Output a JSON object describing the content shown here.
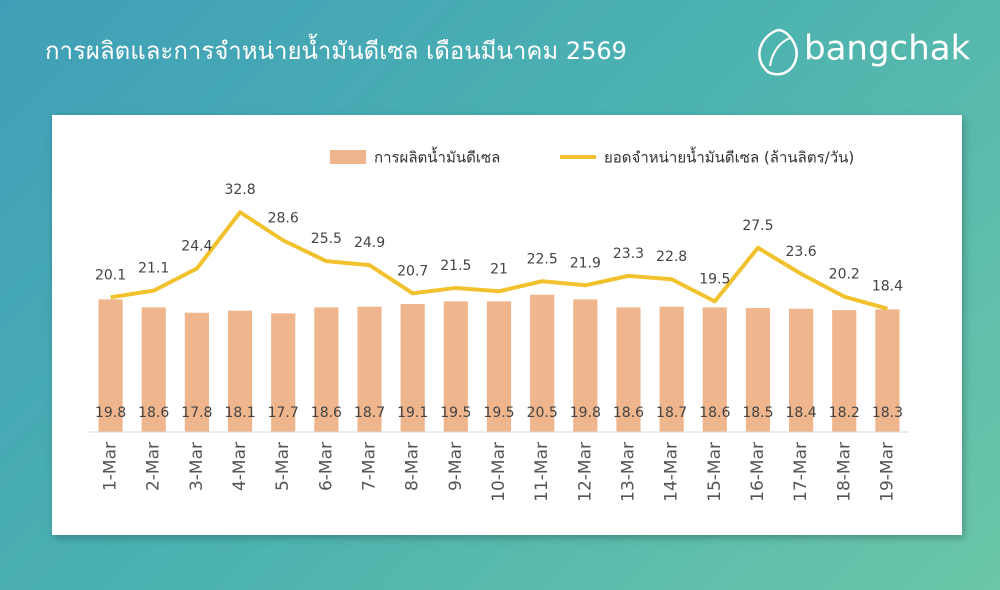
{
  "logo": "bangchak",
  "chart_data": {
    "type": "bar",
    "title": "การผลิตและการจำหน่ายน้ำมันดีเซล เดือนมีนาคม 2569",
    "categories": [
      "1-Mar",
      "2-Mar",
      "3-Mar",
      "4-Mar",
      "5-Mar",
      "6-Mar",
      "7-Mar",
      "8-Mar",
      "9-Mar",
      "10-Mar",
      "11-Mar",
      "12-Mar",
      "13-Mar",
      "14-Mar",
      "15-Mar",
      "16-Mar",
      "17-Mar",
      "18-Mar",
      "19-Mar"
    ],
    "series": [
      {
        "name": "การผลิตน้ำมันดีเซล",
        "type": "bar",
        "color": "#efb68e",
        "values": [
          19.8,
          18.6,
          17.8,
          18.1,
          17.7,
          18.6,
          18.7,
          19.1,
          19.5,
          19.5,
          20.5,
          19.8,
          18.6,
          18.7,
          18.6,
          18.5,
          18.4,
          18.2,
          18.3
        ]
      },
      {
        "name": "ยอดจำหน่ายน้ำมันดีเซล (ล้านลิตร/วัน)",
        "type": "line",
        "color": "#f2c22e",
        "values": [
          20.1,
          21.1,
          24.4,
          32.8,
          28.6,
          25.5,
          24.9,
          20.7,
          21.5,
          21,
          22.5,
          21.9,
          23.3,
          22.8,
          19.5,
          27.5,
          23.6,
          20.2,
          18.4
        ]
      }
    ],
    "ylim": [
      0,
      40
    ],
    "legend": "top-right"
  }
}
